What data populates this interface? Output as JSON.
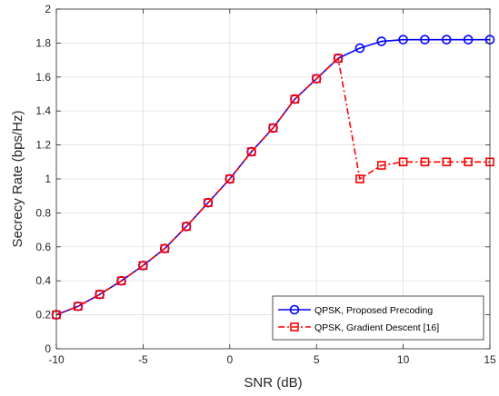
{
  "chart_data": {
    "type": "line",
    "title": "",
    "xlabel": "SNR (dB)",
    "ylabel": "Secrecy Rate (bps/Hz)",
    "xlim": [
      -10,
      15
    ],
    "ylim": [
      0,
      2
    ],
    "xticks": [
      -10,
      -5,
      0,
      5,
      10,
      15
    ],
    "yticks": [
      0,
      0.2,
      0.4,
      0.6,
      0.8,
      1,
      1.2,
      1.4,
      1.6,
      1.8,
      2
    ],
    "grid": true,
    "legend_position": "bottom-right",
    "x": [
      -10,
      -8.75,
      -7.5,
      -6.25,
      -5,
      -3.75,
      -2.5,
      -1.25,
      0,
      1.25,
      2.5,
      3.75,
      5,
      6.25,
      7.5,
      8.75,
      10,
      11.25,
      12.5,
      13.75,
      15
    ],
    "series": [
      {
        "name": "QPSK, Proposed Precoding",
        "color": "#0000ff",
        "marker": "circle",
        "line_style": "solid",
        "values": [
          0.2,
          0.25,
          0.32,
          0.4,
          0.49,
          0.59,
          0.72,
          0.86,
          1.0,
          1.16,
          1.3,
          1.47,
          1.59,
          1.71,
          1.77,
          1.81,
          1.82,
          1.82,
          1.82,
          1.82,
          1.82
        ]
      },
      {
        "name": "QPSK, Gradient Descent [16]",
        "color": "#ff0000",
        "marker": "square",
        "line_style": "dash-dot",
        "values": [
          0.2,
          0.25,
          0.32,
          0.4,
          0.49,
          0.59,
          0.72,
          0.86,
          1.0,
          1.16,
          1.3,
          1.47,
          1.59,
          1.71,
          1.0,
          1.08,
          1.1,
          1.1,
          1.1,
          1.1,
          1.1
        ]
      }
    ]
  }
}
